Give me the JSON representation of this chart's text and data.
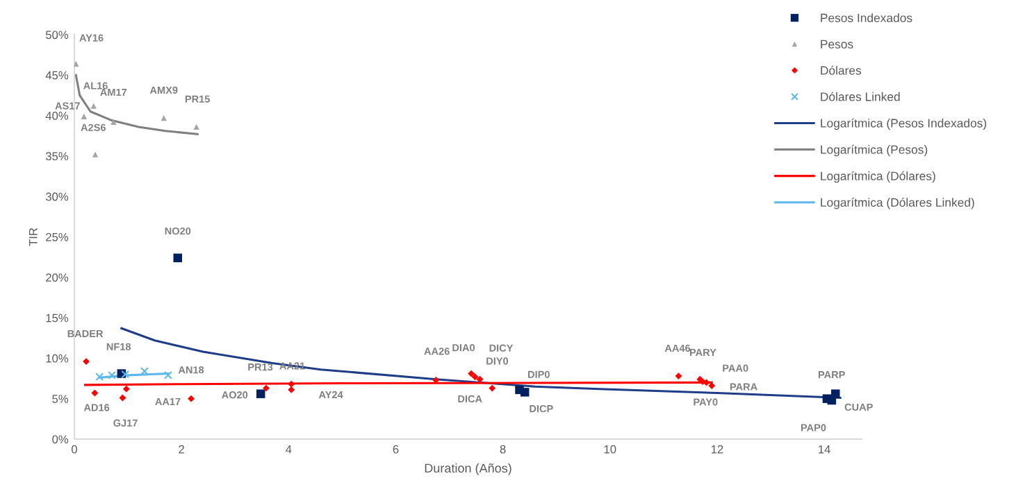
{
  "chart_data": {
    "type": "scatter",
    "xlabel": "Duration (Años)",
    "ylabel": "TIR",
    "xlim": [
      0,
      14.7
    ],
    "xticks": [
      0,
      2,
      4,
      6,
      8,
      10,
      12,
      14
    ],
    "ylim": [
      0,
      50
    ],
    "yticks": [
      {
        "value": 0,
        "label": "0%"
      },
      {
        "value": 5,
        "label": "5%"
      },
      {
        "value": 10,
        "label": "10%"
      },
      {
        "value": 15,
        "label": "15%"
      },
      {
        "value": 20,
        "label": "20%"
      },
      {
        "value": 25,
        "label": "25%"
      },
      {
        "value": 30,
        "label": "30%"
      },
      {
        "value": 35,
        "label": "35%"
      },
      {
        "value": 40,
        "label": "40%"
      },
      {
        "value": 45,
        "label": "45%"
      },
      {
        "value": 50,
        "label": "50%"
      }
    ],
    "grid": false,
    "legend": "top right",
    "series": [
      {
        "name": "Pesos Indexados",
        "marker": "square",
        "color": "#002060",
        "x": [
          1.93,
          0.88,
          3.48,
          8.31,
          8.41,
          14.05,
          14.14,
          14.21
        ],
        "values": [
          22.4,
          8.1,
          5.6,
          6.1,
          5.8,
          5.0,
          4.8,
          5.6
        ]
      },
      {
        "name": "Pesos",
        "marker": "triangle",
        "color": "#a5a5a5",
        "x": [
          0.03,
          0.36,
          0.18,
          0.73,
          0.39,
          1.67,
          2.28
        ],
        "values": [
          46.4,
          41.2,
          39.9,
          39.2,
          35.2,
          39.7,
          38.6
        ]
      },
      {
        "name": "Dólares",
        "marker": "diamond",
        "color": "#ff0000",
        "x": [
          0.22,
          0.38,
          0.9,
          0.97,
          2.18,
          3.58,
          4.05,
          4.05,
          6.75,
          7.41,
          7.48,
          7.57,
          7.8,
          11.28,
          11.68,
          11.8,
          11.9,
          11.73
        ],
        "values": [
          9.6,
          5.7,
          5.1,
          6.2,
          5.0,
          6.3,
          6.8,
          6.1,
          7.3,
          8.1,
          7.7,
          7.4,
          6.3,
          7.8,
          7.4,
          7.0,
          6.6,
          7.1
        ]
      },
      {
        "name": "Dólares Linked",
        "marker": "cross",
        "color": "#5bb8e8",
        "x": [
          0.47,
          0.7,
          0.95,
          1.31,
          1.75
        ],
        "values": [
          7.7,
          7.9,
          8.0,
          8.4,
          7.9
        ]
      },
      {
        "name": "Logarítmica (Pesos Indexados)",
        "type": "line",
        "marker": "none",
        "color": "#1f3c88",
        "x": [
          0.88,
          1.5,
          2.4,
          3.7,
          4.6,
          6.75,
          8.6,
          9.8,
          12.0,
          14.3
        ],
        "values": [
          13.7,
          12.2,
          10.8,
          9.4,
          8.6,
          7.4,
          6.5,
          6.2,
          5.7,
          5.1
        ]
      },
      {
        "name": "Logarítmica (Pesos)",
        "type": "line",
        "marker": "none",
        "color": "#7f7f7f",
        "x": [
          0.03,
          0.1,
          0.3,
          0.7,
          1.2,
          1.7,
          2.3
        ],
        "values": [
          45.0,
          42.5,
          40.5,
          39.4,
          38.6,
          38.1,
          37.7
        ]
      },
      {
        "name": "Logarítmica (Dólares)",
        "type": "line",
        "marker": "none",
        "color": "#ff0000",
        "x": [
          0.2,
          2.0,
          5.0,
          11.9
        ],
        "values": [
          6.7,
          6.8,
          6.9,
          7.0
        ]
      },
      {
        "name": "Logarítmica (Dólares Linked)",
        "type": "line",
        "marker": "none",
        "color": "#5bb8e8",
        "x": [
          0.47,
          1.0,
          1.75
        ],
        "values": [
          7.6,
          7.9,
          8.1
        ]
      }
    ],
    "annotations": [
      {
        "text": "AY16",
        "x": 0.03,
        "y": 46.4
      },
      {
        "text": "AL16",
        "x": 0.36,
        "y": 41.2
      },
      {
        "text": "AS17",
        "x": 0.18,
        "y": 39.9
      },
      {
        "text": "AM17",
        "x": 0.73,
        "y": 39.2
      },
      {
        "text": "A2S6",
        "x": 0.39,
        "y": 35.2
      },
      {
        "text": "AMX9",
        "x": 1.67,
        "y": 39.7
      },
      {
        "text": "PR15",
        "x": 2.28,
        "y": 38.6
      },
      {
        "text": "NO20",
        "x": 1.93,
        "y": 22.4
      },
      {
        "text": "NF18",
        "x": 0.88,
        "y": 8.1
      },
      {
        "text": "AO20",
        "x": 3.48,
        "y": 5.6
      },
      {
        "text": "DIP0",
        "x": 8.31,
        "y": 6.1
      },
      {
        "text": "DICP",
        "x": 8.41,
        "y": 5.8
      },
      {
        "text": "PAP0",
        "x": 14.05,
        "y": 5.0
      },
      {
        "text": "CUAP",
        "x": 14.14,
        "y": 4.8
      },
      {
        "text": "PARP",
        "x": 14.21,
        "y": 5.6
      },
      {
        "text": "BADER",
        "x": 0.22,
        "y": 9.6
      },
      {
        "text": "AD16",
        "x": 0.38,
        "y": 5.7
      },
      {
        "text": "GJ17",
        "x": 0.9,
        "y": 5.1
      },
      {
        "text": "AA17",
        "x": 0.97,
        "y": 6.2
      },
      {
        "text": "AN18",
        "x": 2.18,
        "y": 5.0
      },
      {
        "text": "PR13",
        "x": 3.58,
        "y": 6.3
      },
      {
        "text": "AA21",
        "x": 4.05,
        "y": 6.8
      },
      {
        "text": "AY24",
        "x": 4.05,
        "y": 6.1
      },
      {
        "text": "AA26",
        "x": 6.75,
        "y": 7.3
      },
      {
        "text": "DIA0",
        "x": 7.41,
        "y": 8.1
      },
      {
        "text": "DICY",
        "x": 7.48,
        "y": 7.7
      },
      {
        "text": "DIY0",
        "x": 7.57,
        "y": 7.4
      },
      {
        "text": "DICA",
        "x": 7.8,
        "y": 6.3
      },
      {
        "text": "AA46",
        "x": 11.28,
        "y": 7.8
      },
      {
        "text": "PARY",
        "x": 11.68,
        "y": 7.4
      },
      {
        "text": "PAA0",
        "x": 11.8,
        "y": 7.0
      },
      {
        "text": "PARA",
        "x": 11.9,
        "y": 6.6
      },
      {
        "text": "PAY0",
        "x": 11.73,
        "y": 7.1
      }
    ]
  }
}
